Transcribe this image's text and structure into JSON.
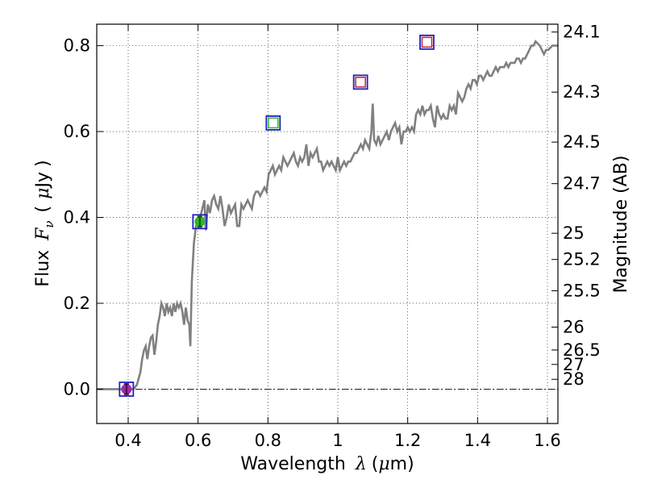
{
  "chart_data": {
    "type": "line",
    "title": "",
    "xlabel": {
      "main": "Wavelength",
      "symbol": "λ",
      "unit_open": "(",
      "unit_mu": "μ",
      "unit_rest": "m)"
    },
    "ylabel": {
      "main": "Flux",
      "symbol_base": "F",
      "symbol_sub": "ν",
      "unit_open": "(",
      "unit_mu": "μ",
      "unit_rest": "Jy",
      "unit_close": ")"
    },
    "y2label": "Magnitude (AB)",
    "xlim": [
      0.31,
      1.63
    ],
    "ylim": [
      -0.08,
      0.85
    ],
    "grid": true,
    "xticks": [
      {
        "value": 0.4,
        "label": "0.4"
      },
      {
        "value": 0.6,
        "label": "0.6"
      },
      {
        "value": 0.8,
        "label": "0.8"
      },
      {
        "value": 1.0,
        "label": "1"
      },
      {
        "value": 1.2,
        "label": "1.2"
      },
      {
        "value": 1.4,
        "label": "1.4"
      },
      {
        "value": 1.6,
        "label": "1.6"
      }
    ],
    "yticks": [
      {
        "value": 0.0,
        "label": "0.0"
      },
      {
        "value": 0.2,
        "label": "0.2"
      },
      {
        "value": 0.4,
        "label": "0.4"
      },
      {
        "value": 0.6,
        "label": "0.6"
      },
      {
        "value": 0.8,
        "label": "0.8"
      }
    ],
    "mag_ticks": [
      {
        "mag": 24.1,
        "label": "24.1"
      },
      {
        "mag": 24.3,
        "label": "24.3"
      },
      {
        "mag": 24.5,
        "label": "24.5"
      },
      {
        "mag": 24.7,
        "label": "24.7"
      },
      {
        "mag": 25.0,
        "label": "25"
      },
      {
        "mag": 25.2,
        "label": "25.2"
      },
      {
        "mag": 25.5,
        "label": "25.5"
      },
      {
        "mag": 26.0,
        "label": "26"
      },
      {
        "mag": 26.5,
        "label": "26.5"
      },
      {
        "mag": 27.0,
        "label": "27"
      },
      {
        "mag": 28.0,
        "label": "28"
      }
    ],
    "series": [
      {
        "kind": "spectrum",
        "color": "#808080",
        "points": [
          [
            0.31,
            0.0
          ],
          [
            0.4,
            0.0
          ],
          [
            0.415,
            0.0
          ],
          [
            0.425,
            0.01
          ],
          [
            0.435,
            0.04
          ],
          [
            0.44,
            0.07
          ],
          [
            0.445,
            0.09
          ],
          [
            0.45,
            0.1
          ],
          [
            0.455,
            0.07
          ],
          [
            0.46,
            0.1
          ],
          [
            0.465,
            0.12
          ],
          [
            0.47,
            0.125
          ],
          [
            0.475,
            0.08
          ],
          [
            0.48,
            0.11
          ],
          [
            0.485,
            0.15
          ],
          [
            0.49,
            0.17
          ],
          [
            0.495,
            0.2
          ],
          [
            0.5,
            0.19
          ],
          [
            0.505,
            0.17
          ],
          [
            0.51,
            0.2
          ],
          [
            0.515,
            0.18
          ],
          [
            0.52,
            0.19
          ],
          [
            0.525,
            0.17
          ],
          [
            0.53,
            0.2
          ],
          [
            0.535,
            0.18
          ],
          [
            0.54,
            0.2
          ],
          [
            0.545,
            0.19
          ],
          [
            0.55,
            0.2
          ],
          [
            0.555,
            0.18
          ],
          [
            0.56,
            0.15
          ],
          [
            0.565,
            0.19
          ],
          [
            0.57,
            0.16
          ],
          [
            0.575,
            0.15
          ],
          [
            0.578,
            0.1
          ],
          [
            0.582,
            0.25
          ],
          [
            0.588,
            0.34
          ],
          [
            0.594,
            0.38
          ],
          [
            0.6,
            0.39
          ],
          [
            0.606,
            0.4
          ],
          [
            0.612,
            0.42
          ],
          [
            0.618,
            0.44
          ],
          [
            0.622,
            0.37
          ],
          [
            0.628,
            0.43
          ],
          [
            0.634,
            0.41
          ],
          [
            0.64,
            0.44
          ],
          [
            0.646,
            0.45
          ],
          [
            0.652,
            0.43
          ],
          [
            0.658,
            0.42
          ],
          [
            0.664,
            0.45
          ],
          [
            0.67,
            0.42
          ],
          [
            0.676,
            0.38
          ],
          [
            0.682,
            0.4
          ],
          [
            0.688,
            0.43
          ],
          [
            0.694,
            0.41
          ],
          [
            0.7,
            0.42
          ],
          [
            0.706,
            0.43
          ],
          [
            0.712,
            0.38
          ],
          [
            0.718,
            0.38
          ],
          [
            0.724,
            0.43
          ],
          [
            0.73,
            0.42
          ],
          [
            0.736,
            0.43
          ],
          [
            0.742,
            0.44
          ],
          [
            0.748,
            0.43
          ],
          [
            0.754,
            0.42
          ],
          [
            0.76,
            0.45
          ],
          [
            0.766,
            0.46
          ],
          [
            0.772,
            0.46
          ],
          [
            0.778,
            0.45
          ],
          [
            0.784,
            0.46
          ],
          [
            0.79,
            0.47
          ],
          [
            0.796,
            0.46
          ],
          [
            0.802,
            0.5
          ],
          [
            0.808,
            0.51
          ],
          [
            0.814,
            0.52
          ],
          [
            0.82,
            0.5
          ],
          [
            0.826,
            0.51
          ],
          [
            0.832,
            0.52
          ],
          [
            0.838,
            0.51
          ],
          [
            0.844,
            0.54
          ],
          [
            0.85,
            0.53
          ],
          [
            0.856,
            0.52
          ],
          [
            0.862,
            0.53
          ],
          [
            0.868,
            0.54
          ],
          [
            0.874,
            0.55
          ],
          [
            0.88,
            0.53
          ],
          [
            0.886,
            0.52
          ],
          [
            0.892,
            0.54
          ],
          [
            0.898,
            0.53
          ],
          [
            0.904,
            0.54
          ],
          [
            0.91,
            0.57
          ],
          [
            0.916,
            0.52
          ],
          [
            0.922,
            0.55
          ],
          [
            0.928,
            0.54
          ],
          [
            0.934,
            0.55
          ],
          [
            0.94,
            0.56
          ],
          [
            0.946,
            0.53
          ],
          [
            0.952,
            0.53
          ],
          [
            0.958,
            0.51
          ],
          [
            0.964,
            0.52
          ],
          [
            0.97,
            0.53
          ],
          [
            0.976,
            0.52
          ],
          [
            0.982,
            0.53
          ],
          [
            0.988,
            0.52
          ],
          [
            0.994,
            0.51
          ],
          [
            1.0,
            0.54
          ],
          [
            1.006,
            0.51
          ],
          [
            1.012,
            0.52
          ],
          [
            1.018,
            0.53
          ],
          [
            1.024,
            0.52
          ],
          [
            1.03,
            0.53
          ],
          [
            1.036,
            0.53
          ],
          [
            1.042,
            0.54
          ],
          [
            1.048,
            0.55
          ],
          [
            1.054,
            0.55
          ],
          [
            1.06,
            0.56
          ],
          [
            1.066,
            0.57
          ],
          [
            1.072,
            0.56
          ],
          [
            1.078,
            0.58
          ],
          [
            1.084,
            0.57
          ],
          [
            1.09,
            0.56
          ],
          [
            1.096,
            0.6
          ],
          [
            1.1,
            0.665
          ],
          [
            1.104,
            0.58
          ],
          [
            1.11,
            0.57
          ],
          [
            1.116,
            0.59
          ],
          [
            1.122,
            0.57
          ],
          [
            1.128,
            0.58
          ],
          [
            1.134,
            0.59
          ],
          [
            1.14,
            0.6
          ],
          [
            1.146,
            0.58
          ],
          [
            1.152,
            0.6
          ],
          [
            1.158,
            0.61
          ],
          [
            1.164,
            0.62
          ],
          [
            1.17,
            0.6
          ],
          [
            1.176,
            0.61
          ],
          [
            1.182,
            0.57
          ],
          [
            1.188,
            0.6
          ],
          [
            1.194,
            0.6
          ],
          [
            1.2,
            0.61
          ],
          [
            1.206,
            0.6
          ],
          [
            1.212,
            0.61
          ],
          [
            1.218,
            0.6
          ],
          [
            1.224,
            0.64
          ],
          [
            1.23,
            0.65
          ],
          [
            1.236,
            0.64
          ],
          [
            1.242,
            0.66
          ],
          [
            1.248,
            0.64
          ],
          [
            1.254,
            0.65
          ],
          [
            1.26,
            0.65
          ],
          [
            1.266,
            0.66
          ],
          [
            1.272,
            0.63
          ],
          [
            1.278,
            0.61
          ],
          [
            1.284,
            0.66
          ],
          [
            1.29,
            0.64
          ],
          [
            1.296,
            0.63
          ],
          [
            1.302,
            0.64
          ],
          [
            1.308,
            0.63
          ],
          [
            1.314,
            0.63
          ],
          [
            1.32,
            0.66
          ],
          [
            1.326,
            0.65
          ],
          [
            1.332,
            0.66
          ],
          [
            1.338,
            0.64
          ],
          [
            1.344,
            0.69
          ],
          [
            1.35,
            0.68
          ],
          [
            1.356,
            0.67
          ],
          [
            1.362,
            0.68
          ],
          [
            1.368,
            0.7
          ],
          [
            1.374,
            0.71
          ],
          [
            1.38,
            0.7
          ],
          [
            1.386,
            0.72
          ],
          [
            1.392,
            0.72
          ],
          [
            1.398,
            0.71
          ],
          [
            1.404,
            0.73
          ],
          [
            1.41,
            0.73
          ],
          [
            1.416,
            0.72
          ],
          [
            1.422,
            0.73
          ],
          [
            1.428,
            0.74
          ],
          [
            1.434,
            0.73
          ],
          [
            1.44,
            0.73
          ],
          [
            1.446,
            0.74
          ],
          [
            1.452,
            0.75
          ],
          [
            1.458,
            0.74
          ],
          [
            1.464,
            0.75
          ],
          [
            1.47,
            0.75
          ],
          [
            1.476,
            0.75
          ],
          [
            1.482,
            0.76
          ],
          [
            1.488,
            0.75
          ],
          [
            1.494,
            0.76
          ],
          [
            1.5,
            0.76
          ],
          [
            1.506,
            0.76
          ],
          [
            1.512,
            0.77
          ],
          [
            1.518,
            0.77
          ],
          [
            1.524,
            0.76
          ],
          [
            1.53,
            0.77
          ],
          [
            1.536,
            0.77
          ],
          [
            1.542,
            0.78
          ],
          [
            1.548,
            0.79
          ],
          [
            1.554,
            0.8
          ],
          [
            1.56,
            0.8
          ],
          [
            1.566,
            0.81
          ],
          [
            1.572,
            0.805
          ],
          [
            1.578,
            0.8
          ],
          [
            1.584,
            0.79
          ],
          [
            1.59,
            0.78
          ],
          [
            1.596,
            0.79
          ],
          [
            1.602,
            0.79
          ],
          [
            1.608,
            0.795
          ],
          [
            1.614,
            0.8
          ],
          [
            1.62,
            0.8
          ],
          [
            1.63,
            0.8
          ]
        ]
      },
      {
        "kind": "photometry",
        "points": [
          {
            "x": 0.395,
            "y": 0.0,
            "facecolor": "#9b2ca8",
            "fill": true,
            "edgecolor": "#2020c0",
            "errorbar": true,
            "err": 0.012,
            "errcolor": "#4a0a4a"
          },
          {
            "x": 0.605,
            "y": 0.39,
            "facecolor": "#2db82d",
            "fill": true,
            "edgecolor": "#2020c0",
            "errorbar": true,
            "err": 0.012,
            "errcolor": "#145014"
          },
          {
            "x": 0.815,
            "y": 0.62,
            "facecolor": "#2db82d",
            "fill": false,
            "edgecolor": "#2020c0",
            "errorbar": false
          },
          {
            "x": 1.065,
            "y": 0.715,
            "facecolor": "#d02020",
            "fill": false,
            "edgecolor": "#2020c0",
            "errorbar": false
          },
          {
            "x": 1.255,
            "y": 0.808,
            "facecolor": "#d02020",
            "fill": false,
            "edgecolor": "#2020c0",
            "errorbar": false
          }
        ]
      }
    ]
  }
}
